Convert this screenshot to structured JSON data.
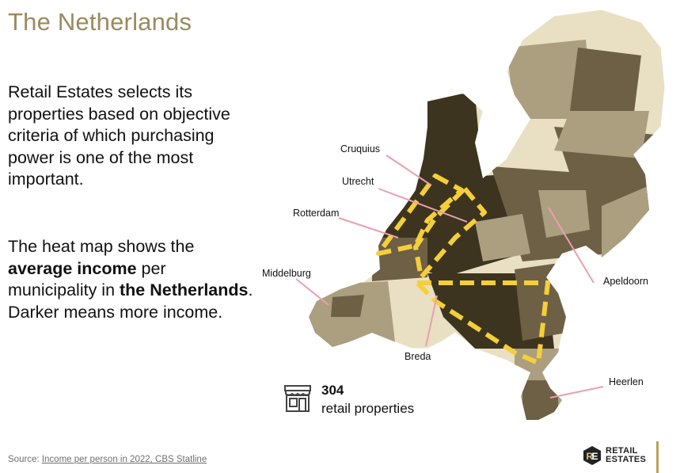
{
  "title": "The Netherlands",
  "intro": "Retail Estates selects its properties based on objective criteria of which purchasing power is one of the most important.",
  "heatmap_text": {
    "part1": "The heat map shows the ",
    "bold1": "average income",
    "part2": " per municipality in ",
    "bold2": "the Netherlands",
    "part3": ". Darker means more income."
  },
  "map_labels": {
    "cruquius": "Cruquius",
    "utrecht": "Utrecht",
    "rotterdam": "Rotterdam",
    "middelburg": "Middelburg",
    "apeldoorn": "Apeldoorn",
    "breda": "Breda",
    "heerlen": "Heerlen"
  },
  "stats": {
    "count": "304",
    "label": "retail properties"
  },
  "source": {
    "prefix": "Source: ",
    "link": "Income per person in 2022, CBS Statline"
  },
  "logo": {
    "line1": "RETAIL",
    "line2": "ESTATES"
  },
  "colors": {
    "title": "#9a8a5e",
    "dark": "#3d3420",
    "mid": "#6e6045",
    "light": "#ab9f80",
    "pale": "#e9dfc2",
    "highlight": "#f5cf3a",
    "pointer": "#e8a0b0",
    "accent": "#b9a35a"
  }
}
